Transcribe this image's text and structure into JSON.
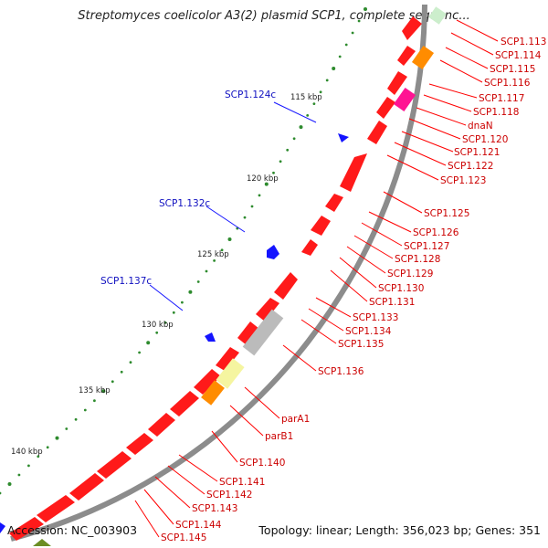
{
  "title": "Streptomyces coelicolor A3(2) plasmid SCP1, complete sequenc...",
  "footer": {
    "accession": "Accession: NC_003903",
    "summary": "Topology: linear; Length: 356,023 bp; Genes: 351"
  },
  "colors": {
    "backbone": "#888888",
    "gene": "#ff0000",
    "tick": "#228b22",
    "left_gene_label": "#1010c0",
    "right_gene_label": "#cc0000"
  },
  "scale_labels": [
    "115 kbp",
    "120 kbp",
    "125 kbp",
    "130 kbp",
    "135 kbp",
    "140 kbp"
  ],
  "left_labels": [
    "SCP1.124c",
    "SCP1.132c",
    "SCP1.137c"
  ],
  "right_labels": [
    "SCP1.113",
    "SCP1.114",
    "SCP1.115",
    "SCP1.116",
    "SCP1.117",
    "SCP1.118",
    "dnaN",
    "SCP1.120",
    "SCP1.121",
    "SCP1.122",
    "SCP1.123",
    "SCP1.125",
    "SCP1.126",
    "SCP1.127",
    "SCP1.128",
    "SCP1.129",
    "SCP1.130",
    "SCP1.131",
    "SCP1.133",
    "SCP1.134",
    "SCP1.135",
    "SCP1.136",
    "parA1",
    "parB1",
    "SCP1.140",
    "SCP1.141",
    "SCP1.142",
    "SCP1.143",
    "SCP1.144",
    "SCP1.145"
  ]
}
